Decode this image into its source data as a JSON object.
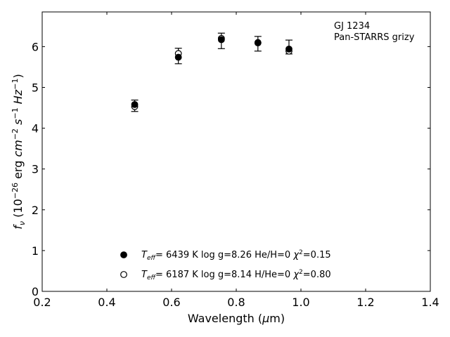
{
  "chart_data": {
    "type": "scatter",
    "xlabel": "Wavelength (μm)",
    "ylabel": "f_ν (10^-26 erg cm^-2 s^-1 Hz^-1)",
    "xlim": [
      0.2,
      1.4
    ],
    "ylim": [
      0,
      6.85
    ],
    "x_ticks": [
      0.2,
      0.4,
      0.6,
      0.8,
      1.0,
      1.2,
      1.4
    ],
    "x_tick_labels": [
      "0.2",
      "0.4",
      "0.6",
      "0.8",
      "1.0",
      "1.2",
      "1.4"
    ],
    "y_ticks": [
      0,
      1,
      2,
      3,
      4,
      5,
      6
    ],
    "y_tick_labels": [
      "0",
      "1",
      "2",
      "3",
      "4",
      "5",
      "6"
    ],
    "grid": false,
    "annotations": [
      {
        "text": "GJ 1234",
        "position": "top-right"
      },
      {
        "text": "Pan-STARRS grizy",
        "position": "top-right"
      }
    ],
    "observed": {
      "x": [
        0.486,
        0.621,
        0.754,
        0.867,
        0.963
      ],
      "y": [
        4.55,
        5.77,
        6.14,
        6.07,
        5.99
      ],
      "yerr": [
        0.14,
        0.19,
        0.19,
        0.18,
        0.17
      ]
    },
    "series": [
      {
        "marker": "filled-circle",
        "x": [
          0.486,
          0.621,
          0.754,
          0.867,
          0.963
        ],
        "y": [
          4.58,
          5.74,
          6.17,
          6.1,
          5.94
        ],
        "legend": {
          "teff": "6439 K",
          "logg": "log g=8.26",
          "comp": "He/H=0",
          "chi2": "=0.15"
        }
      },
      {
        "marker": "open-circle",
        "x": [
          0.486,
          0.621,
          0.754,
          0.867,
          0.963
        ],
        "y": [
          4.53,
          5.83,
          6.2,
          6.09,
          5.89
        ],
        "legend": {
          "teff": "6187 K",
          "logg": "log g=8.14",
          "comp": "H/He=0",
          "chi2": "=0.80"
        }
      }
    ],
    "legend_placement": "lower-center"
  }
}
